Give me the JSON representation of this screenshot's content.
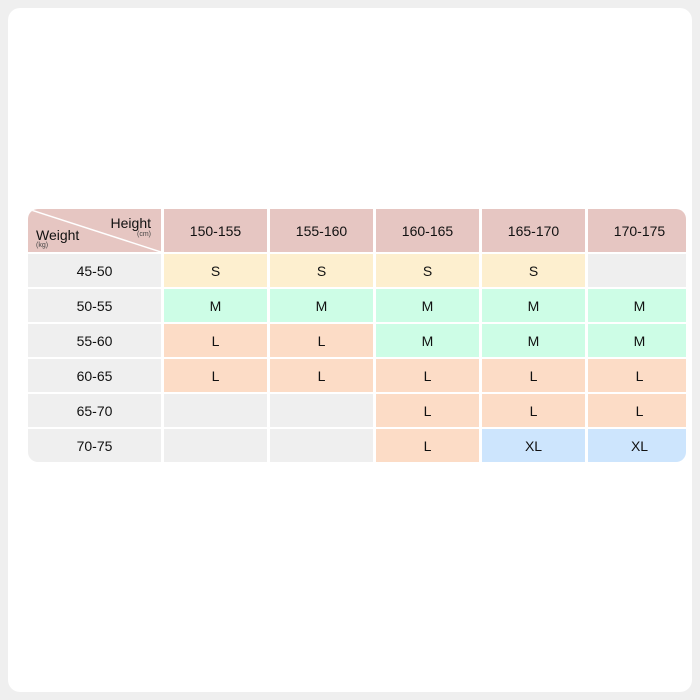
{
  "table": {
    "corner": {
      "height_label": "Height",
      "height_unit": "(cm)",
      "weight_label": "Weight",
      "weight_unit": "(kg)"
    },
    "height_ranges": [
      "150-155",
      "155-160",
      "160-165",
      "165-170",
      "170-175"
    ],
    "rows": [
      {
        "weight": "45-50",
        "sizes": [
          "S",
          "S",
          "S",
          "S",
          ""
        ]
      },
      {
        "weight": "50-55",
        "sizes": [
          "M",
          "M",
          "M",
          "M",
          "M"
        ]
      },
      {
        "weight": "55-60",
        "sizes": [
          "L",
          "L",
          "M",
          "M",
          "M"
        ]
      },
      {
        "weight": "60-65",
        "sizes": [
          "L",
          "L",
          "L",
          "L",
          "L"
        ]
      },
      {
        "weight": "65-70",
        "sizes": [
          "",
          "",
          "L",
          "L",
          "L"
        ]
      },
      {
        "weight": "70-75",
        "sizes": [
          "",
          "",
          "L",
          "XL",
          "XL"
        ]
      }
    ],
    "colors": {
      "header": "#e6c6c2",
      "row_header": "#efefef",
      "empty": "#efefef",
      "S": "#fdefcf",
      "M": "#cdfde6",
      "L": "#fcdcc6",
      "XL": "#cde5fd"
    }
  }
}
